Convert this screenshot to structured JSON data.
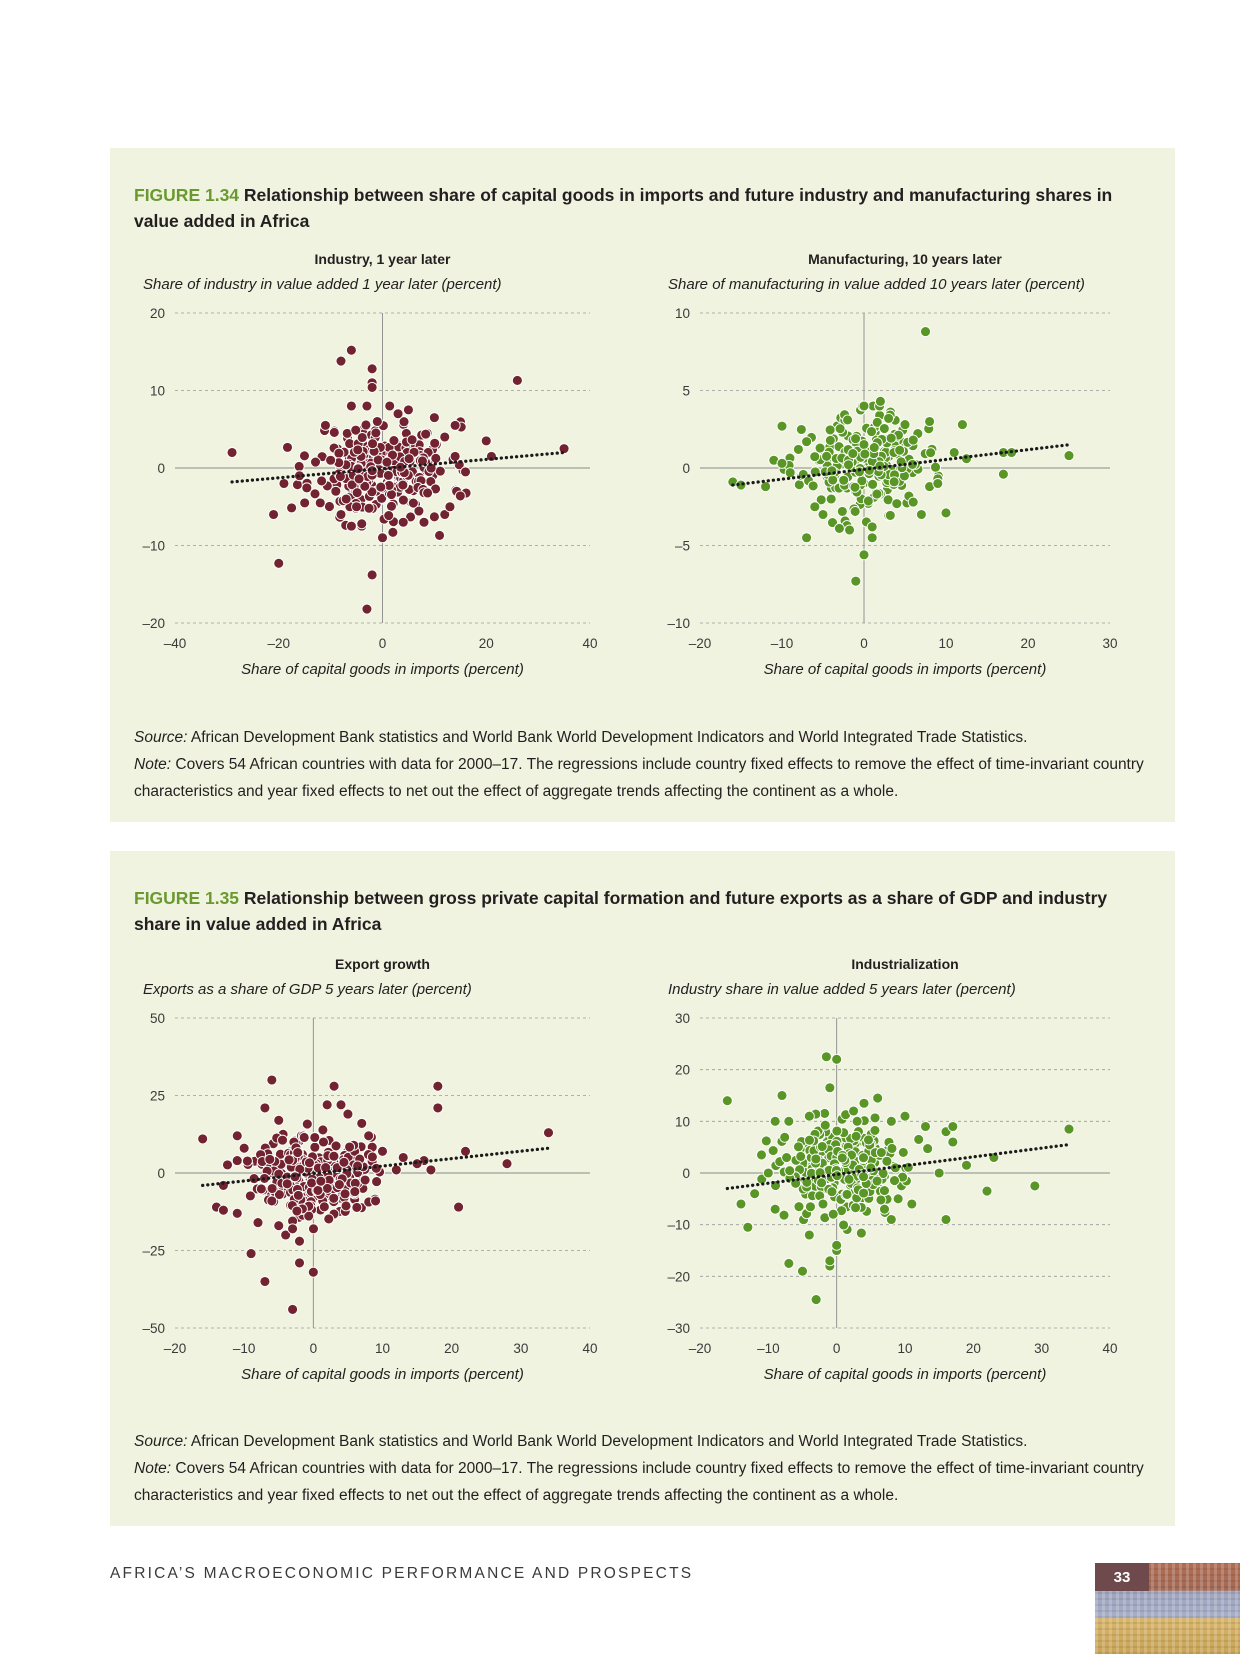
{
  "figures": [
    {
      "number": "FIGURE 1.34",
      "title": "Relationship between share of capital goods in imports and future industry and manufacturing shares in value added in Africa",
      "source_label": "Source:",
      "source_text": "African Development Bank statistics and World Bank World Development Indicators and World Integrated Trade Statistics.",
      "note_label": "Note:",
      "note_text": "Covers 54 African countries with data for 2000–17. The regressions include country fixed effects to remove the effect of time-invariant country characteristics and year fixed effects to net out the effect of aggregate trends affecting the continent as a whole."
    },
    {
      "number": "FIGURE 1.35",
      "title": "Relationship between gross private capital formation and future exports as a share of GDP and industry share in value added in Africa",
      "source_label": "Source:",
      "source_text": "African Development Bank statistics and World Bank World Development Indicators and World Integrated Trade Statistics.",
      "note_label": "Note:",
      "note_text": "Covers 54 African countries with data for 2000–17. The regressions include country fixed effects to remove the effect of time-invariant country characteristics and year fixed effects to net out the effect of aggregate trends affecting the continent as a whole."
    }
  ],
  "colors": {
    "maroon": "#722330",
    "green": "#5a9626",
    "grid": "#9a9a9a",
    "axis": "#8a8a8a",
    "trend": "#1a1a1a"
  },
  "chart_data": [
    {
      "type": "scatter",
      "figure": 0,
      "seed": 11,
      "color": "maroon",
      "title": "Industry, 1 year later",
      "ylabel": "Share of industry in value added 1 year later (percent)",
      "xlabel": "Share of capital goods in imports (percent)",
      "xlim": [
        -40,
        40
      ],
      "ylim": [
        -20,
        20
      ],
      "xticks": [
        -40,
        -20,
        0,
        20,
        40
      ],
      "yticks": [
        -20,
        -10,
        0,
        10,
        20
      ],
      "grid": true,
      "trendline": {
        "x": [
          -29,
          35
        ],
        "y": [
          -1.8,
          2.0
        ]
      },
      "cluster": {
        "count": 260,
        "center": [
          0,
          0
        ],
        "spread": [
          6.5,
          3.0
        ],
        "clip": [
          20,
          8
        ]
      },
      "points": [
        [
          -29,
          2
        ],
        [
          -21,
          -6
        ],
        [
          -20,
          -12.3
        ],
        [
          -19,
          -2
        ],
        [
          -16,
          -1
        ],
        [
          -15,
          -4.5
        ],
        [
          -12,
          -4.5
        ],
        [
          -11,
          5.5
        ],
        [
          -10,
          1
        ],
        [
          -9,
          -3
        ],
        [
          -8,
          -6
        ],
        [
          -8,
          13.8
        ],
        [
          -7,
          -4
        ],
        [
          -6,
          15.2
        ],
        [
          -6,
          -7.5
        ],
        [
          -6,
          8
        ],
        [
          -5,
          -5
        ],
        [
          -4,
          -7.5
        ],
        [
          -4,
          -7.2
        ],
        [
          -3,
          -18.2
        ],
        [
          -3,
          8
        ],
        [
          -2,
          12.8
        ],
        [
          -2,
          11
        ],
        [
          -2,
          10.4
        ],
        [
          -2,
          -13.8
        ],
        [
          0,
          -9
        ],
        [
          2,
          -8.3
        ],
        [
          4,
          -7
        ],
        [
          8,
          -7
        ],
        [
          10,
          -6.3
        ],
        [
          11,
          -8.7
        ],
        [
          12,
          -6
        ],
        [
          13,
          -5
        ],
        [
          14,
          5.5
        ],
        [
          15,
          -3.6
        ],
        [
          16,
          -0.5
        ],
        [
          20,
          3.5
        ],
        [
          21,
          1.5
        ],
        [
          26,
          11.3
        ],
        [
          35,
          2.5
        ],
        [
          -1,
          6
        ],
        [
          3,
          7
        ],
        [
          5,
          7.5
        ],
        [
          10,
          6.5
        ],
        [
          12,
          4
        ],
        [
          14,
          1.5
        ]
      ]
    },
    {
      "type": "scatter",
      "figure": 0,
      "seed": 23,
      "color": "green",
      "title": "Manufacturing, 10 years later",
      "ylabel": "Share of manufacturing in value added 10 years later (percent)",
      "xlabel": "Share of capital goods in imports (percent)",
      "xlim": [
        -20,
        30
      ],
      "ylim": [
        -10,
        10
      ],
      "xticks": [
        -20,
        -10,
        0,
        10,
        20,
        30
      ],
      "yticks": [
        -10,
        -5,
        0,
        5,
        10
      ],
      "grid": true,
      "trendline": {
        "x": [
          -16,
          25
        ],
        "y": [
          -1.1,
          1.5
        ]
      },
      "cluster": {
        "count": 230,
        "center": [
          0,
          0.3
        ],
        "spread": [
          3.6,
          1.5
        ],
        "clip": [
          11,
          4
        ]
      },
      "points": [
        [
          -16,
          -0.9
        ],
        [
          -15,
          -1.1
        ],
        [
          -12,
          -1.2
        ],
        [
          -11,
          0.5
        ],
        [
          -10,
          0.3
        ],
        [
          -10,
          2.7
        ],
        [
          -9,
          -0.3
        ],
        [
          -7,
          -4.5
        ],
        [
          -7,
          1.7
        ],
        [
          -6,
          -2.5
        ],
        [
          -5,
          -3
        ],
        [
          -4,
          -2
        ],
        [
          -3,
          -3.9
        ],
        [
          -2,
          3.1
        ],
        [
          -1,
          -7.3
        ],
        [
          0,
          -5.6
        ],
        [
          0,
          4
        ],
        [
          1,
          -4.5
        ],
        [
          1,
          -3.8
        ],
        [
          2,
          4.3
        ],
        [
          4,
          -2.3
        ],
        [
          6,
          -2.2
        ],
        [
          7,
          -3
        ],
        [
          7.5,
          8.8
        ],
        [
          8,
          -1.2
        ],
        [
          8,
          3
        ],
        [
          9,
          -0.7
        ],
        [
          9,
          -1
        ],
        [
          10,
          -2.9
        ],
        [
          11,
          1
        ],
        [
          12,
          2.8
        ],
        [
          12.5,
          0.6
        ],
        [
          17,
          1
        ],
        [
          17,
          -0.4
        ],
        [
          18,
          1
        ],
        [
          25,
          0.8
        ],
        [
          -8,
          1.2
        ],
        [
          3,
          3.2
        ],
        [
          5,
          2.8
        ],
        [
          6,
          1.8
        ]
      ]
    },
    {
      "type": "scatter",
      "figure": 1,
      "seed": 37,
      "color": "maroon",
      "title": "Export growth",
      "ylabel": "Exports as a share of GDP 5 years later (percent)",
      "xlabel": "Share of capital goods in imports (percent)",
      "xlim": [
        -20,
        40
      ],
      "ylim": [
        -50,
        50
      ],
      "xticks": [
        -20,
        -10,
        0,
        10,
        20,
        30,
        40
      ],
      "yticks": [
        -50,
        -25,
        0,
        25
      ],
      "extra_yticks": [
        50
      ],
      "grid": true,
      "trendline": {
        "x": [
          -16,
          34
        ],
        "y": [
          -4,
          8
        ]
      },
      "cluster": {
        "count": 300,
        "center": [
          0,
          0
        ],
        "spread": [
          4.0,
          6.5
        ],
        "clip": [
          14,
          18
        ]
      },
      "points": [
        [
          -16,
          11
        ],
        [
          -14,
          -11
        ],
        [
          -13,
          -12
        ],
        [
          -13,
          -4
        ],
        [
          -11,
          12
        ],
        [
          -11,
          -13
        ],
        [
          -11,
          4
        ],
        [
          -9,
          -26
        ],
        [
          -8,
          -16
        ],
        [
          -7,
          -35
        ],
        [
          -7,
          21
        ],
        [
          -6,
          30
        ],
        [
          -6,
          -9
        ],
        [
          -5,
          -17
        ],
        [
          -5,
          17
        ],
        [
          -4,
          -20
        ],
        [
          -3,
          -44
        ],
        [
          -3,
          -18
        ],
        [
          -2,
          -22
        ],
        [
          -2,
          -29
        ],
        [
          0,
          -32
        ],
        [
          2,
          22
        ],
        [
          3,
          28
        ],
        [
          4,
          22
        ],
        [
          5,
          19
        ],
        [
          7,
          16
        ],
        [
          9,
          -9
        ],
        [
          10,
          7
        ],
        [
          12,
          1
        ],
        [
          13,
          5
        ],
        [
          16,
          4
        ],
        [
          17,
          1
        ],
        [
          18,
          21
        ],
        [
          18,
          28
        ],
        [
          21,
          -11
        ],
        [
          22,
          7
        ],
        [
          28,
          3
        ],
        [
          34,
          13
        ],
        [
          -10,
          8
        ],
        [
          8,
          12
        ],
        [
          15,
          3
        ],
        [
          6,
          -6
        ]
      ]
    },
    {
      "type": "scatter",
      "figure": 1,
      "seed": 53,
      "color": "green",
      "title": "Industrialization",
      "ylabel": "Industry share in value added 5 years later (percent)",
      "xlabel": "Share of capital goods in imports (percent)",
      "xlim": [
        -20,
        40
      ],
      "ylim": [
        -30,
        30
      ],
      "xticks": [
        -20,
        -10,
        0,
        10,
        20,
        30,
        40
      ],
      "yticks": [
        -30,
        -20,
        -10,
        0,
        10,
        20,
        30
      ],
      "grid": true,
      "trendline": {
        "x": [
          -16,
          34
        ],
        "y": [
          -3,
          5.5
        ]
      },
      "cluster": {
        "count": 320,
        "center": [
          1,
          1
        ],
        "spread": [
          4.5,
          4.2
        ],
        "clip": [
          16,
          12
        ]
      },
      "points": [
        [
          -16,
          14
        ],
        [
          -14,
          -6
        ],
        [
          -13,
          -10.5
        ],
        [
          -12,
          -4
        ],
        [
          -11,
          3.5
        ],
        [
          -10,
          0
        ],
        [
          -9,
          -7
        ],
        [
          -8,
          15
        ],
        [
          -7,
          -17.5
        ],
        [
          -6,
          -2
        ],
        [
          -5,
          -19
        ],
        [
          -4,
          -12
        ],
        [
          -3,
          -24.5
        ],
        [
          -2,
          -6
        ],
        [
          -1.5,
          22.5
        ],
        [
          -1,
          -18
        ],
        [
          -1,
          16.5
        ],
        [
          -1,
          -17
        ],
        [
          0,
          -15
        ],
        [
          0,
          -14
        ],
        [
          0,
          22
        ],
        [
          4,
          13.5
        ],
        [
          6,
          14.5
        ],
        [
          7,
          -7
        ],
        [
          8,
          -9
        ],
        [
          9,
          -5
        ],
        [
          10,
          11
        ],
        [
          11,
          -6
        ],
        [
          12,
          6.5
        ],
        [
          13,
          9
        ],
        [
          15,
          0
        ],
        [
          16,
          -9
        ],
        [
          16,
          8
        ],
        [
          17,
          6
        ],
        [
          17,
          9
        ],
        [
          19,
          1.5
        ],
        [
          22,
          -3.5
        ],
        [
          23,
          3
        ],
        [
          29,
          -2.5
        ],
        [
          34,
          8.5
        ],
        [
          -9,
          10
        ],
        [
          -7,
          10
        ],
        [
          -4,
          11
        ],
        [
          3,
          10
        ],
        [
          8,
          10
        ]
      ]
    }
  ],
  "footer": {
    "running_title": "AFRICA’S MACROECONOMIC PERFORMANCE AND PROSPECTS",
    "page_number": "33"
  }
}
